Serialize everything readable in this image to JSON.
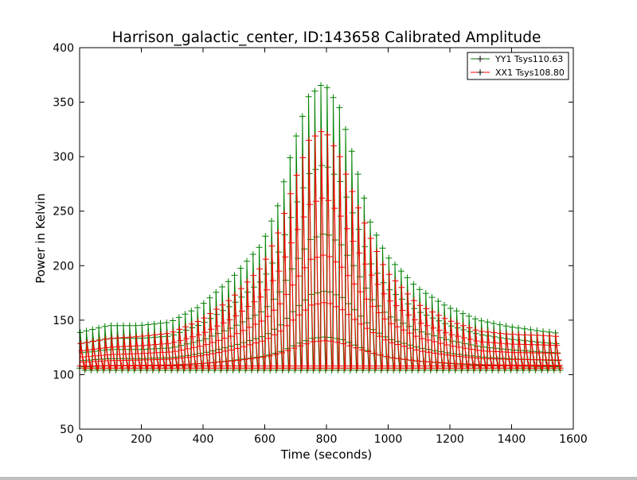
{
  "chart_data": {
    "type": "line",
    "title": "Harrison_galactic_center, ID:143658 Calibrated Amplitude",
    "xlabel": "Time (seconds)",
    "ylabel": "Power in Kelvin",
    "xlim": [
      0,
      1600
    ],
    "ylim": [
      50,
      400
    ],
    "xticks": [
      0,
      200,
      400,
      600,
      800,
      1000,
      1200,
      1400,
      1600
    ],
    "yticks": [
      50,
      100,
      150,
      200,
      250,
      300,
      350,
      400
    ],
    "grid": false,
    "legend_position": "top-right",
    "marker": "+",
    "sweep_period_s": 20,
    "x_range": [
      0,
      1560
    ],
    "series": [
      {
        "name": "YY1 Tsys110.63",
        "color": "#008000",
        "baseline": 103,
        "envelope": {
          "x": [
            0,
            100,
            200,
            300,
            400,
            500,
            600,
            650,
            700,
            750,
            800,
            850,
            900,
            950,
            1000,
            1100,
            1200,
            1300,
            1400,
            1500,
            1560
          ],
          "y": [
            138,
            145,
            145,
            148,
            163,
            188,
            220,
            255,
            310,
            355,
            368,
            345,
            295,
            240,
            210,
            180,
            162,
            150,
            144,
            140,
            138
          ]
        }
      },
      {
        "name": "XX1 Tsys108.80",
        "color": "#ff0000",
        "baseline": 105,
        "envelope": {
          "x": [
            0,
            100,
            200,
            300,
            400,
            500,
            600,
            650,
            700,
            750,
            800,
            850,
            900,
            950,
            1000,
            1100,
            1200,
            1300,
            1400,
            1500,
            1560
          ],
          "y": [
            128,
            133,
            135,
            138,
            150,
            170,
            200,
            230,
            275,
            315,
            325,
            300,
            260,
            225,
            195,
            165,
            150,
            140,
            137,
            136,
            135
          ]
        }
      }
    ]
  }
}
